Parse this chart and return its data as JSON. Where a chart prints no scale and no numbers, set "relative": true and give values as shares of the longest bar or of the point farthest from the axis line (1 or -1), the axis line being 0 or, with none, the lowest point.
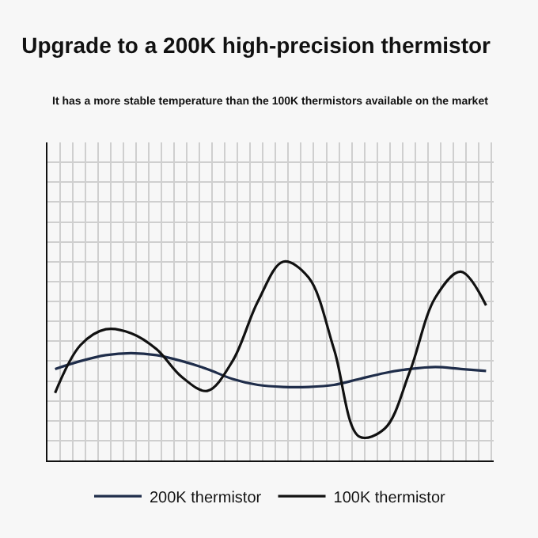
{
  "chart_data": {
    "type": "line",
    "title": "Upgrade to a 200K high-precision thermistor",
    "subtitle": "It has a more stable temperature than the 100K thermistors available on the market",
    "relative": true,
    "grid": true,
    "legend": "bottom",
    "marker": "none",
    "line_style": "solid",
    "categories": [
      null,
      null,
      null,
      null,
      null,
      null,
      null,
      null,
      null,
      null,
      null,
      null,
      null,
      null,
      null,
      null,
      null,
      null
    ],
    "series": [
      {
        "name": "200K thermistor",
        "color": "#1f2d4a",
        "values": [
          0.46,
          0.5,
          0.53,
          0.54,
          0.53,
          0.5,
          0.46,
          0.41,
          0.38,
          0.37,
          0.37,
          0.38,
          0.41,
          0.44,
          0.46,
          0.47,
          0.46,
          0.45
        ]
      },
      {
        "name": "100K thermistor",
        "color": "#111111",
        "values": [
          0.34,
          0.58,
          0.66,
          0.64,
          0.56,
          0.42,
          0.35,
          0.5,
          0.8,
          1.0,
          0.92,
          0.56,
          0.12,
          0.16,
          0.45,
          0.82,
          0.95,
          0.78
        ]
      }
    ]
  }
}
